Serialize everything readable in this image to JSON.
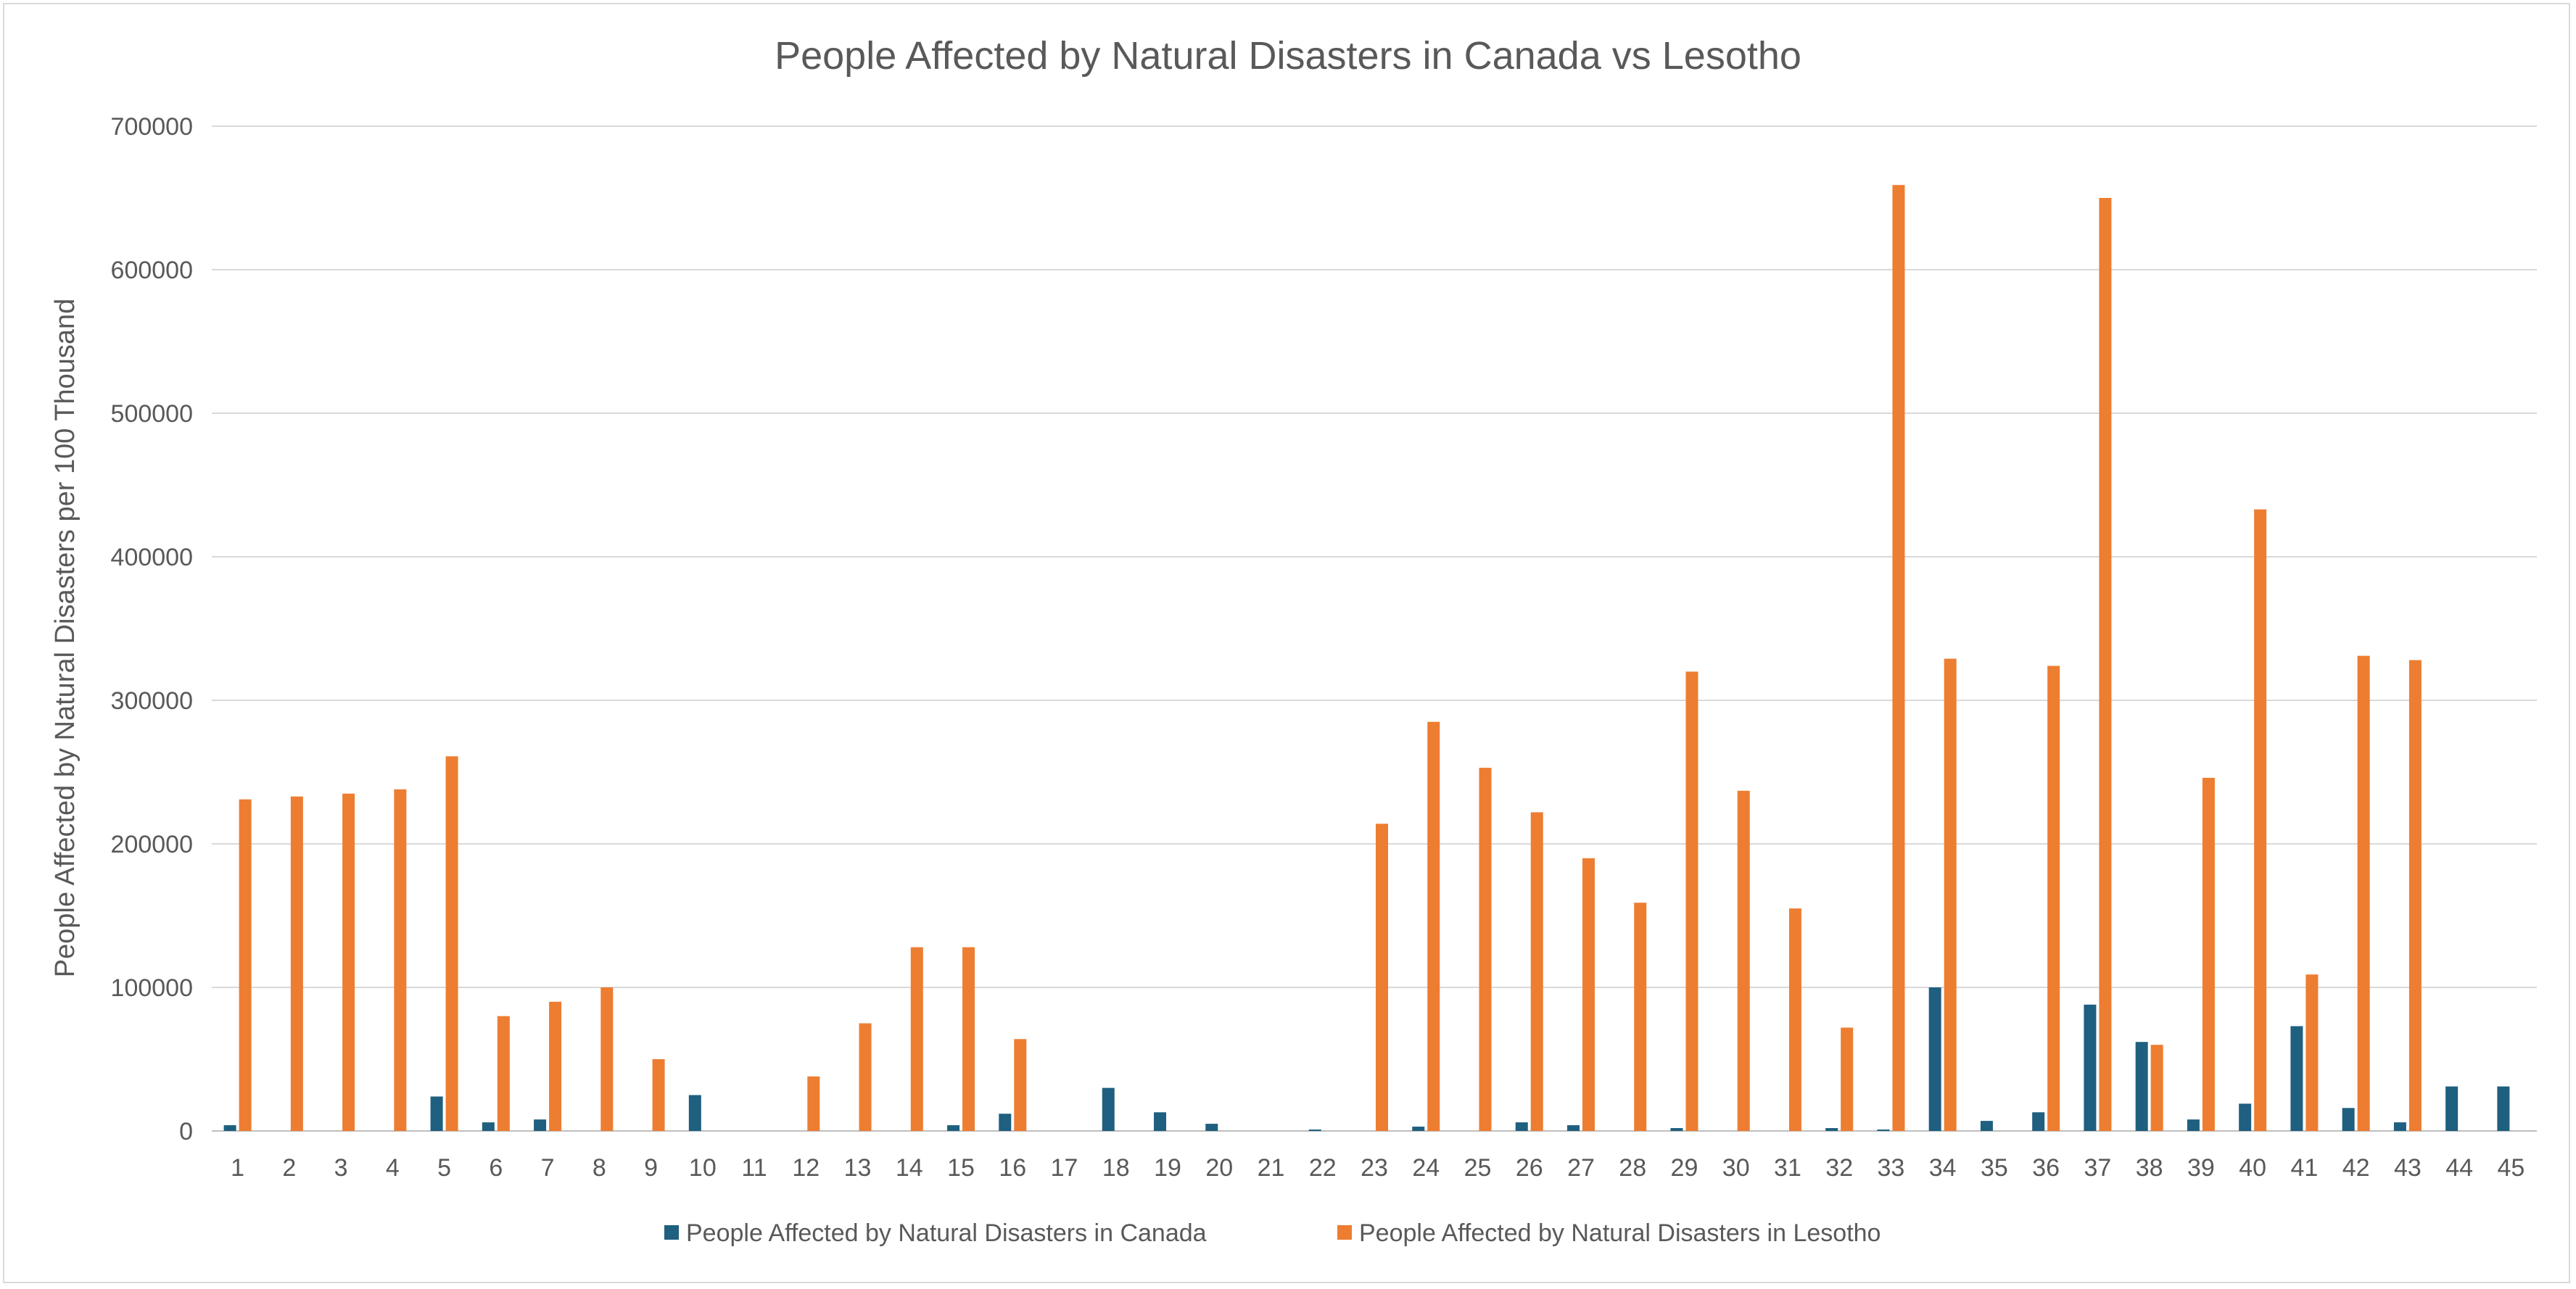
{
  "chart_data": {
    "type": "bar",
    "title": "People Affected by Natural Disasters in Canada vs Lesotho",
    "xlabel": "",
    "ylabel": "People Affected by Natural Disasters per 100 Thousand",
    "ylim": [
      0,
      700000
    ],
    "yticks": [
      "0",
      "100000",
      "200000",
      "300000",
      "400000",
      "500000",
      "600000",
      "700000"
    ],
    "grid": true,
    "legend_position": "bottom",
    "categories": [
      "1",
      "2",
      "3",
      "4",
      "5",
      "6",
      "7",
      "8",
      "9",
      "10",
      "11",
      "12",
      "13",
      "14",
      "15",
      "16",
      "17",
      "18",
      "19",
      "20",
      "21",
      "22",
      "23",
      "24",
      "25",
      "26",
      "27",
      "28",
      "29",
      "30",
      "31",
      "32",
      "33",
      "34",
      "35",
      "36",
      "37",
      "38",
      "39",
      "40",
      "41",
      "42",
      "43",
      "44",
      "45"
    ],
    "series": [
      {
        "name": "People Affected by Natural Disasters in Canada",
        "color": "#1f5f7f",
        "values": [
          4000,
          0,
          0,
          0,
          24000,
          6000,
          8000,
          0,
          0,
          25000,
          0,
          0,
          0,
          0,
          4000,
          12000,
          0,
          30000,
          13000,
          5000,
          0,
          1000,
          0,
          3000,
          0,
          6000,
          4000,
          0,
          2000,
          0,
          0,
          2000,
          1000,
          100000,
          7000,
          13000,
          88000,
          62000,
          8000,
          19000,
          73000,
          16000,
          6000,
          31000,
          31000
        ]
      },
      {
        "name": "People Affected by Natural Disasters in Lesotho",
        "color": "#ed7d31",
        "values": [
          231000,
          233000,
          235000,
          238000,
          261000,
          80000,
          90000,
          100000,
          50000,
          0,
          0,
          38000,
          75000,
          128000,
          128000,
          64000,
          0,
          0,
          0,
          0,
          0,
          0,
          214000,
          285000,
          253000,
          222000,
          190000,
          159000,
          320000,
          237000,
          155000,
          72000,
          659000,
          329000,
          0,
          324000,
          650000,
          60000,
          246000,
          433000,
          109000,
          331000,
          328000,
          0,
          0
        ]
      }
    ]
  }
}
